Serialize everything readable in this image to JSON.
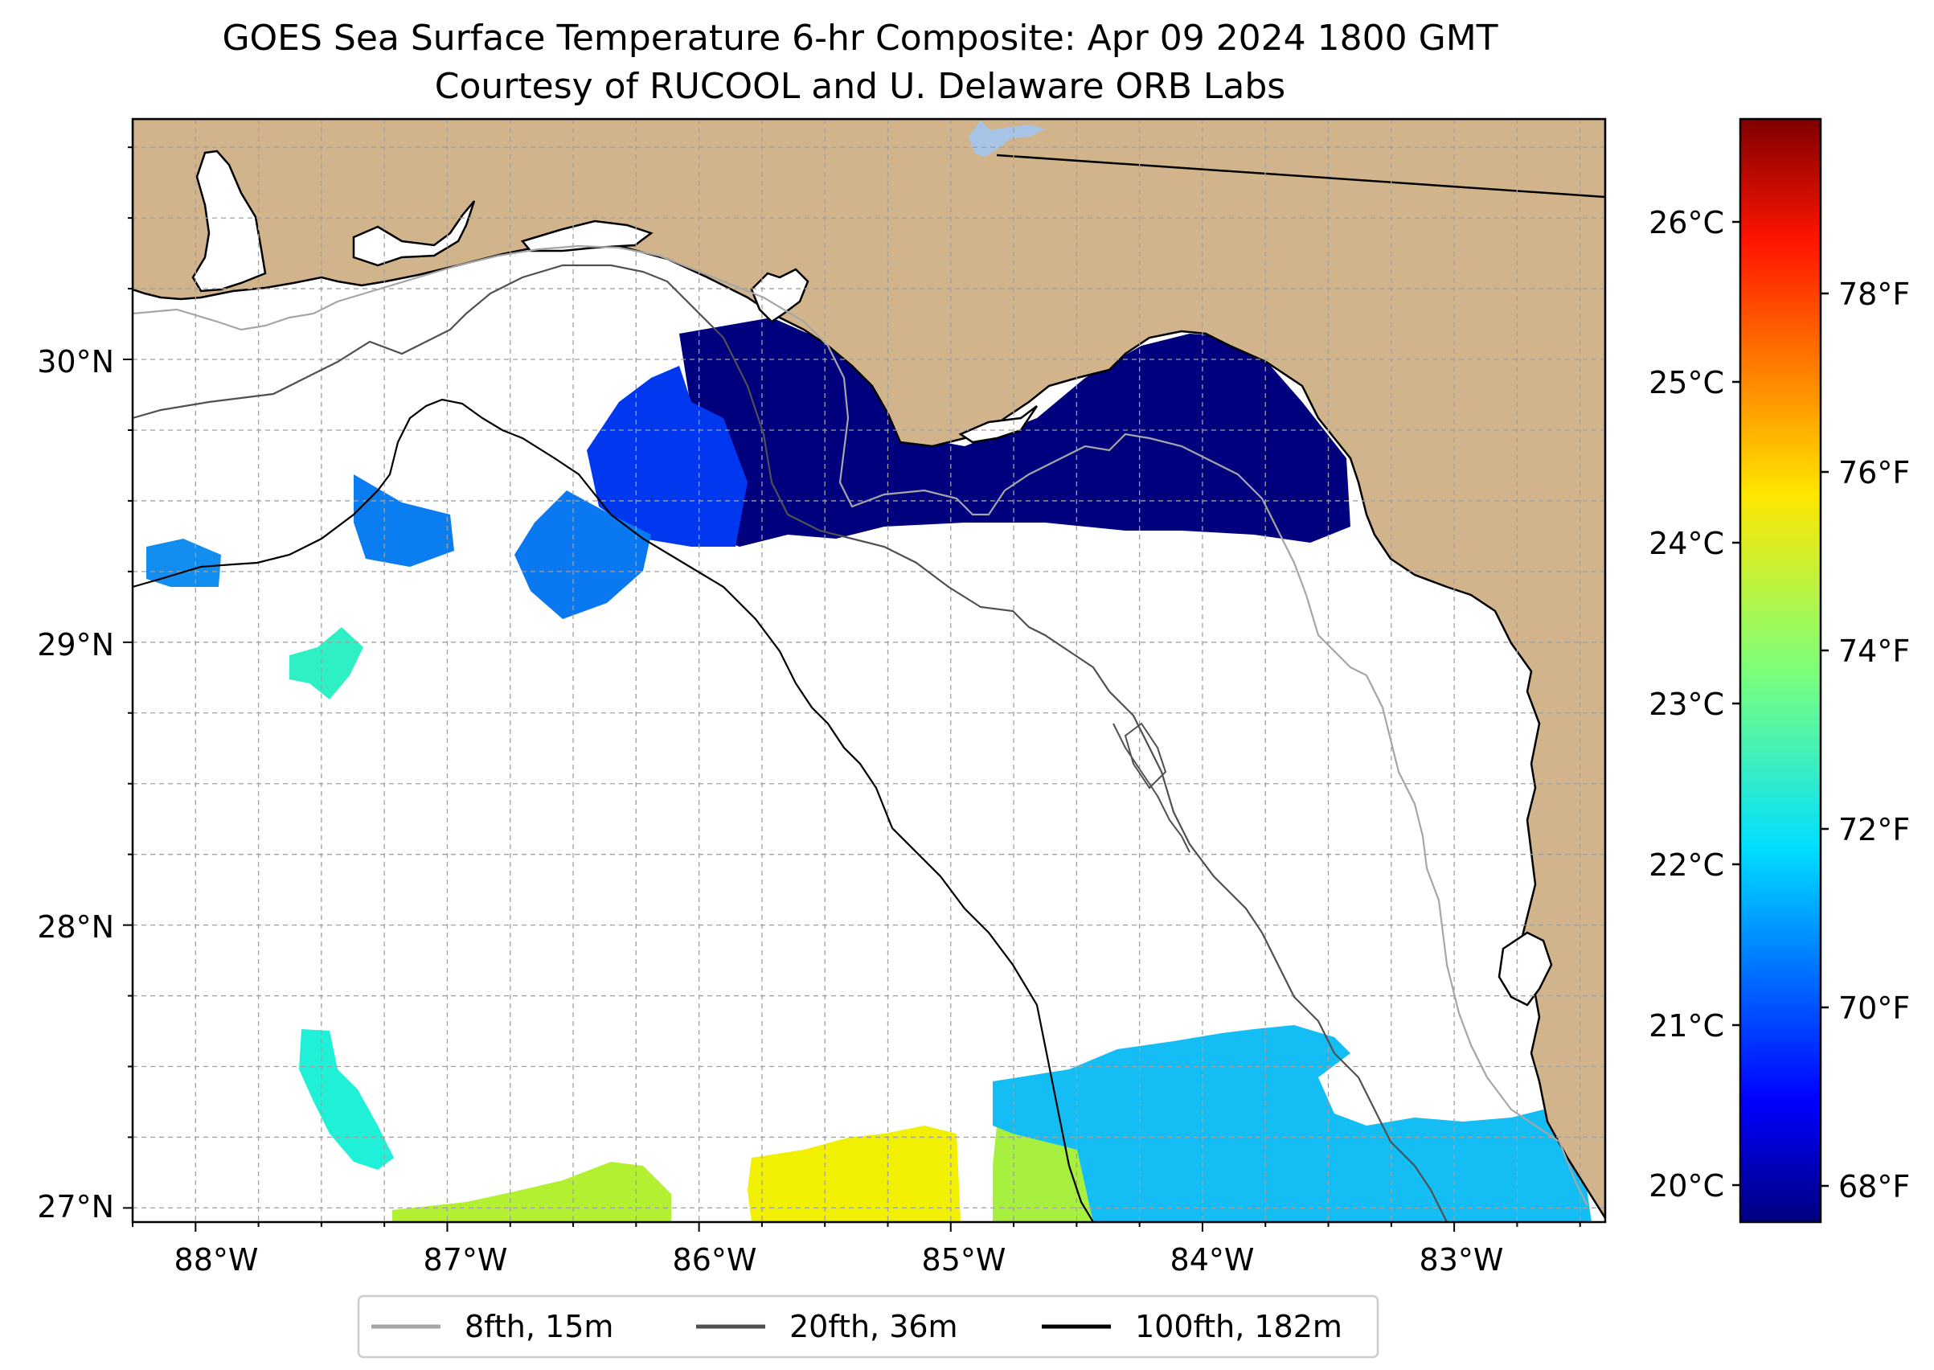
{
  "title": {
    "line1": "GOES Sea Surface Temperature 6-hr Composite: Apr 09 2024 1800 GMT",
    "line2": "Courtesy of RUCOOL and U. Delaware ORB Labs"
  },
  "map": {
    "lon_range": [
      -88.25,
      -82.4
    ],
    "lat_range": [
      26.95,
      30.85
    ],
    "grid_step_deg": 0.25,
    "gridlines": true,
    "lon_labels": [
      "88°W",
      "87°W",
      "86°W",
      "85°W",
      "84°W",
      "83°W"
    ],
    "lat_labels": [
      "30°N",
      "29°N",
      "28°N",
      "27°N"
    ],
    "land_color": "#d2b48c",
    "ocean_color": "#ffffff",
    "lake_color": "#a7c4e6"
  },
  "sst_patches": [
    {
      "region": "nearshore Panhandle east",
      "temp_f": 67.8,
      "color": "#00007f"
    },
    {
      "region": "offshore Destin",
      "temp_f": 69.6,
      "color": "#0040ff"
    },
    {
      "region": "south of Pensacola",
      "temp_f": 70.3,
      "color": "#0a7cf0"
    },
    {
      "region": "west edge",
      "temp_f": 70.5,
      "color": "#118ef0"
    },
    {
      "region": "29N 87.6W cluster",
      "temp_f": 72.8,
      "color": "#2ef0c4"
    },
    {
      "region": "27.5N 87.5W cluster",
      "temp_f": 72.6,
      "color": "#21f0d8"
    },
    {
      "region": "south strip west",
      "temp_f": 74.6,
      "color": "#b8f030"
    },
    {
      "region": "south strip central",
      "temp_f": 75.6,
      "color": "#f0f000"
    },
    {
      "region": "south strip 85W",
      "temp_f": 74.0,
      "color": "#a8f040"
    },
    {
      "region": "southeast shelf",
      "temp_f": 71.6,
      "color": "#18c8f5"
    }
  ],
  "colorbar": {
    "celsius_labels": [
      "20°C",
      "21°C",
      "22°C",
      "23°C",
      "24°C",
      "25°C",
      "26°C"
    ],
    "fahrenheit_labels": [
      "68°F",
      "70°F",
      "72°F",
      "74°F",
      "76°F",
      "78°F"
    ],
    "colormap": "jet"
  },
  "legend": {
    "placement": "bottom-center",
    "items": [
      {
        "label": "8fth, 15m",
        "color": "#a6a6a6"
      },
      {
        "label": "20fth, 36m",
        "color": "#505050"
      },
      {
        "label": "100fth, 182m",
        "color": "#000000"
      }
    ]
  }
}
